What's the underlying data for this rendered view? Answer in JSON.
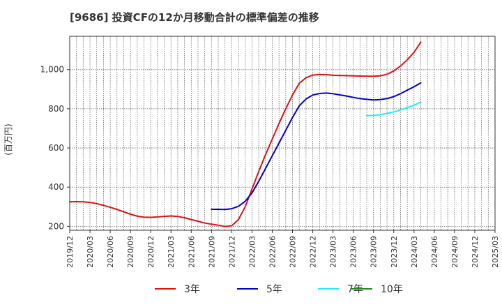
{
  "chart_data": {
    "type": "line",
    "title": "[9686]  投資CFの12か月移動合計の標準偏差の推移",
    "ylabel": "(百万円)",
    "xlabel": "",
    "ylim": [
      180,
      1170
    ],
    "y_ticks": [
      200,
      400,
      600,
      800,
      1000
    ],
    "y_tick_labels": [
      "200",
      "400",
      "600",
      "800",
      "1,000"
    ],
    "x_tick_labels": [
      "2019/12",
      "2020/03",
      "2020/06",
      "2020/09",
      "2020/12",
      "2021/03",
      "2021/06",
      "2021/09",
      "2021/12",
      "2022/03",
      "2022/06",
      "2022/09",
      "2022/12",
      "2023/03",
      "2023/06",
      "2023/09",
      "2023/12",
      "2024/03",
      "2024/06",
      "2024/09",
      "2024/12",
      "2025/03"
    ],
    "grid": true,
    "legend_position": "bottom",
    "series": [
      {
        "name": "3年",
        "color": "#dd1111",
        "points": [
          [
            "2019/12",
            325
          ],
          [
            "2020/01",
            326
          ],
          [
            "2020/02",
            325
          ],
          [
            "2020/03",
            322
          ],
          [
            "2020/04",
            316
          ],
          [
            "2020/05",
            307
          ],
          [
            "2020/06",
            297
          ],
          [
            "2020/07",
            286
          ],
          [
            "2020/08",
            274
          ],
          [
            "2020/09",
            262
          ],
          [
            "2020/10",
            252
          ],
          [
            "2020/11",
            247
          ],
          [
            "2020/12",
            246
          ],
          [
            "2021/01",
            248
          ],
          [
            "2021/02",
            251
          ],
          [
            "2021/03",
            253
          ],
          [
            "2021/04",
            250
          ],
          [
            "2021/05",
            244
          ],
          [
            "2021/06",
            235
          ],
          [
            "2021/07",
            226
          ],
          [
            "2021/08",
            217
          ],
          [
            "2021/09",
            211
          ],
          [
            "2021/10",
            206
          ],
          [
            "2021/11",
            199
          ],
          [
            "2021/12",
            203
          ],
          [
            "2022/01",
            235
          ],
          [
            "2022/02",
            300
          ],
          [
            "2022/03",
            390
          ],
          [
            "2022/04",
            480
          ],
          [
            "2022/05",
            565
          ],
          [
            "2022/06",
            645
          ],
          [
            "2022/07",
            725
          ],
          [
            "2022/08",
            800
          ],
          [
            "2022/09",
            870
          ],
          [
            "2022/10",
            930
          ],
          [
            "2022/11",
            958
          ],
          [
            "2022/12",
            972
          ],
          [
            "2023/01",
            975
          ],
          [
            "2023/02",
            974
          ],
          [
            "2023/03",
            971
          ],
          [
            "2023/04",
            970
          ],
          [
            "2023/05",
            969
          ],
          [
            "2023/06",
            968
          ],
          [
            "2023/07",
            967
          ],
          [
            "2023/08",
            966
          ],
          [
            "2023/09",
            966
          ],
          [
            "2023/10",
            968
          ],
          [
            "2023/11",
            976
          ],
          [
            "2023/12",
            993
          ],
          [
            "2024/01",
            1018
          ],
          [
            "2024/02",
            1050
          ],
          [
            "2024/03",
            1088
          ],
          [
            "2024/04",
            1140
          ]
        ]
      },
      {
        "name": "5年",
        "color": "#0000cc",
        "points": [
          [
            "2021/09",
            287
          ],
          [
            "2021/10",
            287
          ],
          [
            "2021/11",
            286
          ],
          [
            "2021/12",
            290
          ],
          [
            "2022/01",
            302
          ],
          [
            "2022/02",
            328
          ],
          [
            "2022/03",
            370
          ],
          [
            "2022/04",
            430
          ],
          [
            "2022/05",
            495
          ],
          [
            "2022/06",
            560
          ],
          [
            "2022/07",
            625
          ],
          [
            "2022/08",
            690
          ],
          [
            "2022/09",
            755
          ],
          [
            "2022/10",
            815
          ],
          [
            "2022/11",
            850
          ],
          [
            "2022/12",
            870
          ],
          [
            "2023/01",
            878
          ],
          [
            "2023/02",
            880
          ],
          [
            "2023/03",
            877
          ],
          [
            "2023/04",
            871
          ],
          [
            "2023/05",
            865
          ],
          [
            "2023/06",
            858
          ],
          [
            "2023/07",
            852
          ],
          [
            "2023/08",
            848
          ],
          [
            "2023/09",
            845
          ],
          [
            "2023/10",
            847
          ],
          [
            "2023/11",
            852
          ],
          [
            "2023/12",
            862
          ],
          [
            "2024/01",
            877
          ],
          [
            "2024/02",
            895
          ],
          [
            "2024/03",
            912
          ],
          [
            "2024/04",
            932
          ]
        ]
      },
      {
        "name": "7年",
        "color": "#22eeee",
        "points": [
          [
            "2023/08",
            765
          ],
          [
            "2023/09",
            766
          ],
          [
            "2023/10",
            770
          ],
          [
            "2023/11",
            776
          ],
          [
            "2023/12",
            784
          ],
          [
            "2024/01",
            794
          ],
          [
            "2024/02",
            806
          ],
          [
            "2024/03",
            818
          ],
          [
            "2024/04",
            834
          ]
        ]
      },
      {
        "name": "10年",
        "color": "#228822",
        "points": []
      }
    ]
  }
}
